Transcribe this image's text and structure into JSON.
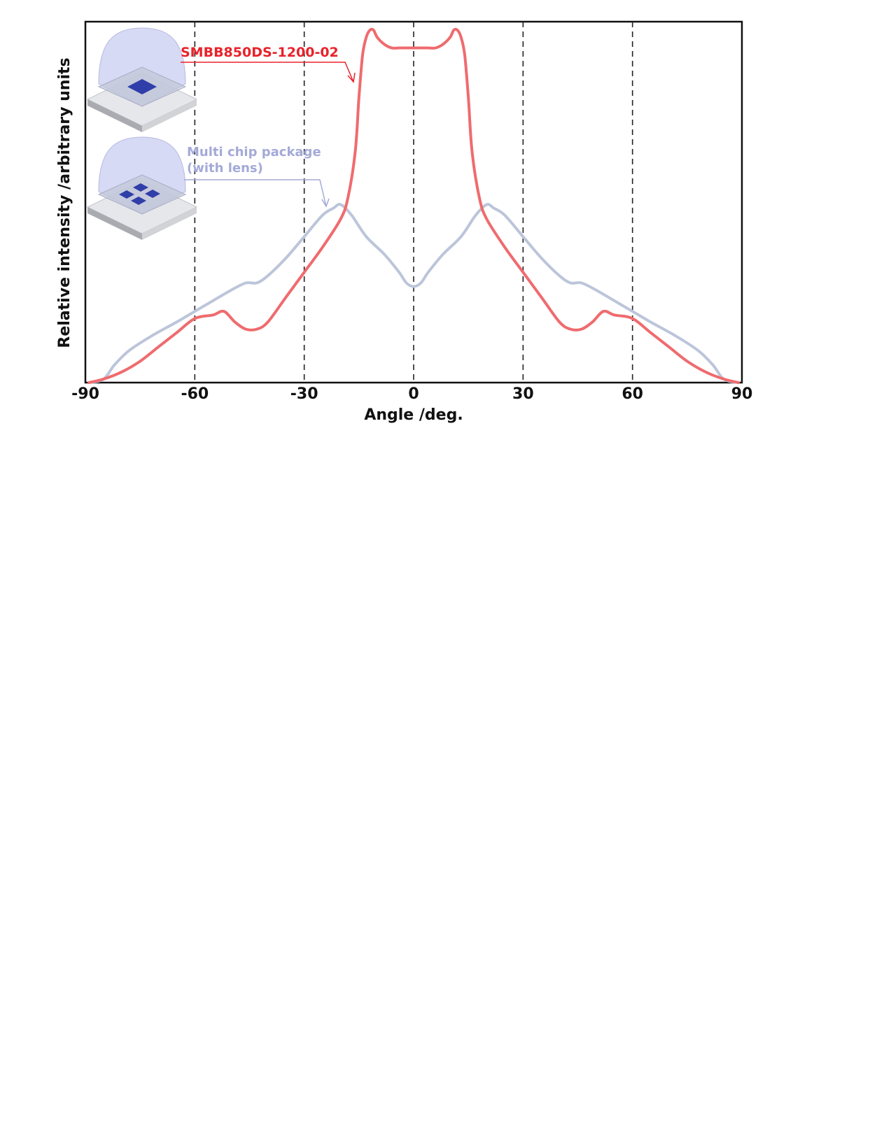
{
  "colors": {
    "red_series": "#ef6b6e",
    "red_label": "#e8232b",
    "blue_series": "#bcc5da",
    "blue_label": "#a4aad8",
    "gridline": "#222222",
    "frame": "#111111",
    "chip": "#2f3ea8"
  },
  "chart_data": {
    "type": "line",
    "xlabel": "Angle /deg.",
    "ylabel": "Relative intensity /arbitrary units",
    "xlim": [
      -90,
      90
    ],
    "ylim": [
      0,
      1
    ],
    "xticks": [
      -90,
      -60,
      -30,
      0,
      30,
      60,
      90
    ],
    "ytick_labels": "none",
    "grid": "vertical dashed lines at -60, -30, 0, 30, 60",
    "series": [
      {
        "name": "SMBB850DS-1200-02",
        "color": "#ef6b6e",
        "x": [
          -89,
          -85,
          -80,
          -75,
          -70,
          -65,
          -60,
          -55,
          -52,
          -49,
          -46,
          -43,
          -40,
          -35,
          -30,
          -25,
          -20,
          -18,
          -16,
          -15,
          -14,
          -13,
          -12,
          -11,
          -10,
          -8,
          -6,
          -4,
          -2,
          0,
          2,
          4,
          6,
          8,
          10,
          11,
          12,
          13,
          14,
          15,
          16,
          18,
          20,
          25,
          30,
          35,
          40,
          43,
          46,
          49,
          52,
          55,
          60,
          65,
          70,
          75,
          80,
          85,
          89
        ],
        "y": [
          0.0,
          0.01,
          0.03,
          0.06,
          0.1,
          0.14,
          0.18,
          0.19,
          0.2,
          0.17,
          0.15,
          0.15,
          0.17,
          0.24,
          0.31,
          0.38,
          0.46,
          0.52,
          0.65,
          0.8,
          0.92,
          0.97,
          0.99,
          0.99,
          0.97,
          0.95,
          0.94,
          0.94,
          0.94,
          0.94,
          0.94,
          0.94,
          0.94,
          0.95,
          0.97,
          0.99,
          0.99,
          0.97,
          0.92,
          0.8,
          0.65,
          0.52,
          0.46,
          0.38,
          0.31,
          0.24,
          0.17,
          0.15,
          0.15,
          0.17,
          0.2,
          0.19,
          0.18,
          0.14,
          0.1,
          0.06,
          0.03,
          0.01,
          0.0
        ]
      },
      {
        "name": "Multi chip package (with lens)",
        "color": "#bcc5da",
        "x": [
          -89,
          -85,
          -82,
          -78,
          -72,
          -65,
          -60,
          -55,
          -50,
          -46,
          -43,
          -40,
          -35,
          -30,
          -25,
          -22,
          -20,
          -17,
          -13,
          -8,
          -4,
          -2,
          0,
          2,
          4,
          8,
          13,
          17,
          20,
          22,
          25,
          30,
          35,
          40,
          43,
          46,
          50,
          55,
          60,
          65,
          72,
          78,
          82,
          85,
          89
        ],
        "y": [
          0.0,
          0.01,
          0.05,
          0.09,
          0.13,
          0.17,
          0.2,
          0.23,
          0.26,
          0.28,
          0.28,
          0.3,
          0.35,
          0.41,
          0.47,
          0.49,
          0.5,
          0.47,
          0.41,
          0.36,
          0.31,
          0.28,
          0.27,
          0.28,
          0.31,
          0.36,
          0.41,
          0.47,
          0.5,
          0.49,
          0.47,
          0.41,
          0.35,
          0.3,
          0.28,
          0.28,
          0.26,
          0.23,
          0.2,
          0.17,
          0.13,
          0.09,
          0.05,
          0.01,
          0.0
        ]
      }
    ],
    "annotations": [
      {
        "text": "SMBB850DS-1200-02",
        "series": 0
      },
      {
        "text_lines": [
          "Multi chip package",
          "(with lens)"
        ],
        "series": 1
      }
    ]
  }
}
